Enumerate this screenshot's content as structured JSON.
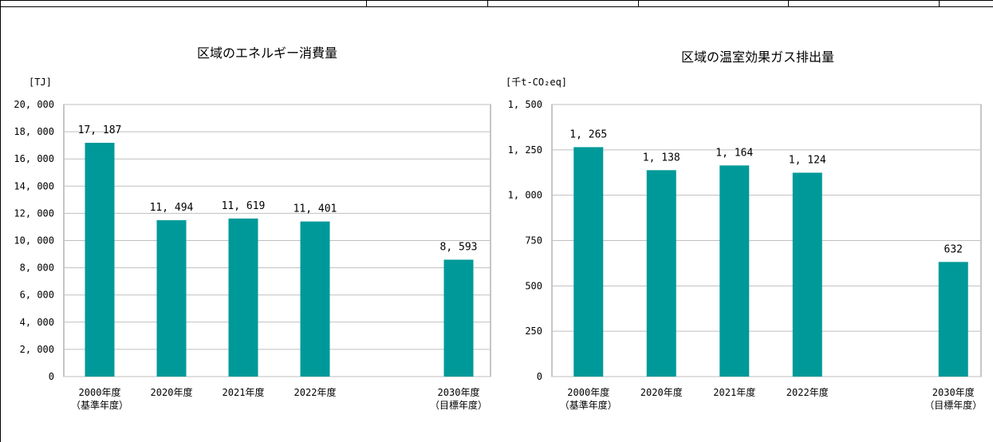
{
  "chart_data": [
    {
      "type": "bar",
      "title": "区域のエネルギー消費量",
      "unit_label": "[TJ]",
      "categories": [
        {
          "line1": "2000年度",
          "line2": "（基準年度）"
        },
        {
          "line1": "2020年度",
          "line2": ""
        },
        {
          "line1": "2021年度",
          "line2": ""
        },
        {
          "line1": "2022年度",
          "line2": ""
        },
        {
          "line1": "2030年度",
          "line2": "（目標年度）"
        }
      ],
      "values": [
        17187,
        11494,
        11619,
        11401,
        8593
      ],
      "value_labels": [
        "17, 187",
        "11, 494",
        "11, 619",
        "11, 401",
        "8, 593"
      ],
      "ylim": [
        0,
        20000
      ],
      "yticks": [
        0,
        2000,
        4000,
        6000,
        8000,
        10000,
        12000,
        14000,
        16000,
        18000,
        20000
      ],
      "ytick_labels": [
        "0",
        "2, 000",
        "4, 000",
        "6, 000",
        "8, 000",
        "10, 000",
        "12, 000",
        "14, 000",
        "16, 000",
        "18, 000",
        "20, 000"
      ],
      "grid": true,
      "bar_color": "#009999"
    },
    {
      "type": "bar",
      "title": "区域の温室効果ガス排出量",
      "unit_label": "[千t-CO₂eq]",
      "categories": [
        {
          "line1": "2000年度",
          "line2": "（基準年度）"
        },
        {
          "line1": "2020年度",
          "line2": ""
        },
        {
          "line1": "2021年度",
          "line2": ""
        },
        {
          "line1": "2022年度",
          "line2": ""
        },
        {
          "line1": "2030年度",
          "line2": "（目標年度）"
        }
      ],
      "values": [
        1265,
        1138,
        1164,
        1124,
        632
      ],
      "value_labels": [
        "1, 265",
        "1, 138",
        "1, 164",
        "1, 124",
        "632"
      ],
      "ylim": [
        0,
        1500
      ],
      "yticks": [
        0,
        250,
        500,
        750,
        1000,
        1250,
        1500
      ],
      "ytick_labels": [
        "0",
        "250",
        "500",
        "750",
        "1, 000",
        "1, 250",
        "1, 500"
      ],
      "grid": true,
      "bar_color": "#009999"
    }
  ]
}
